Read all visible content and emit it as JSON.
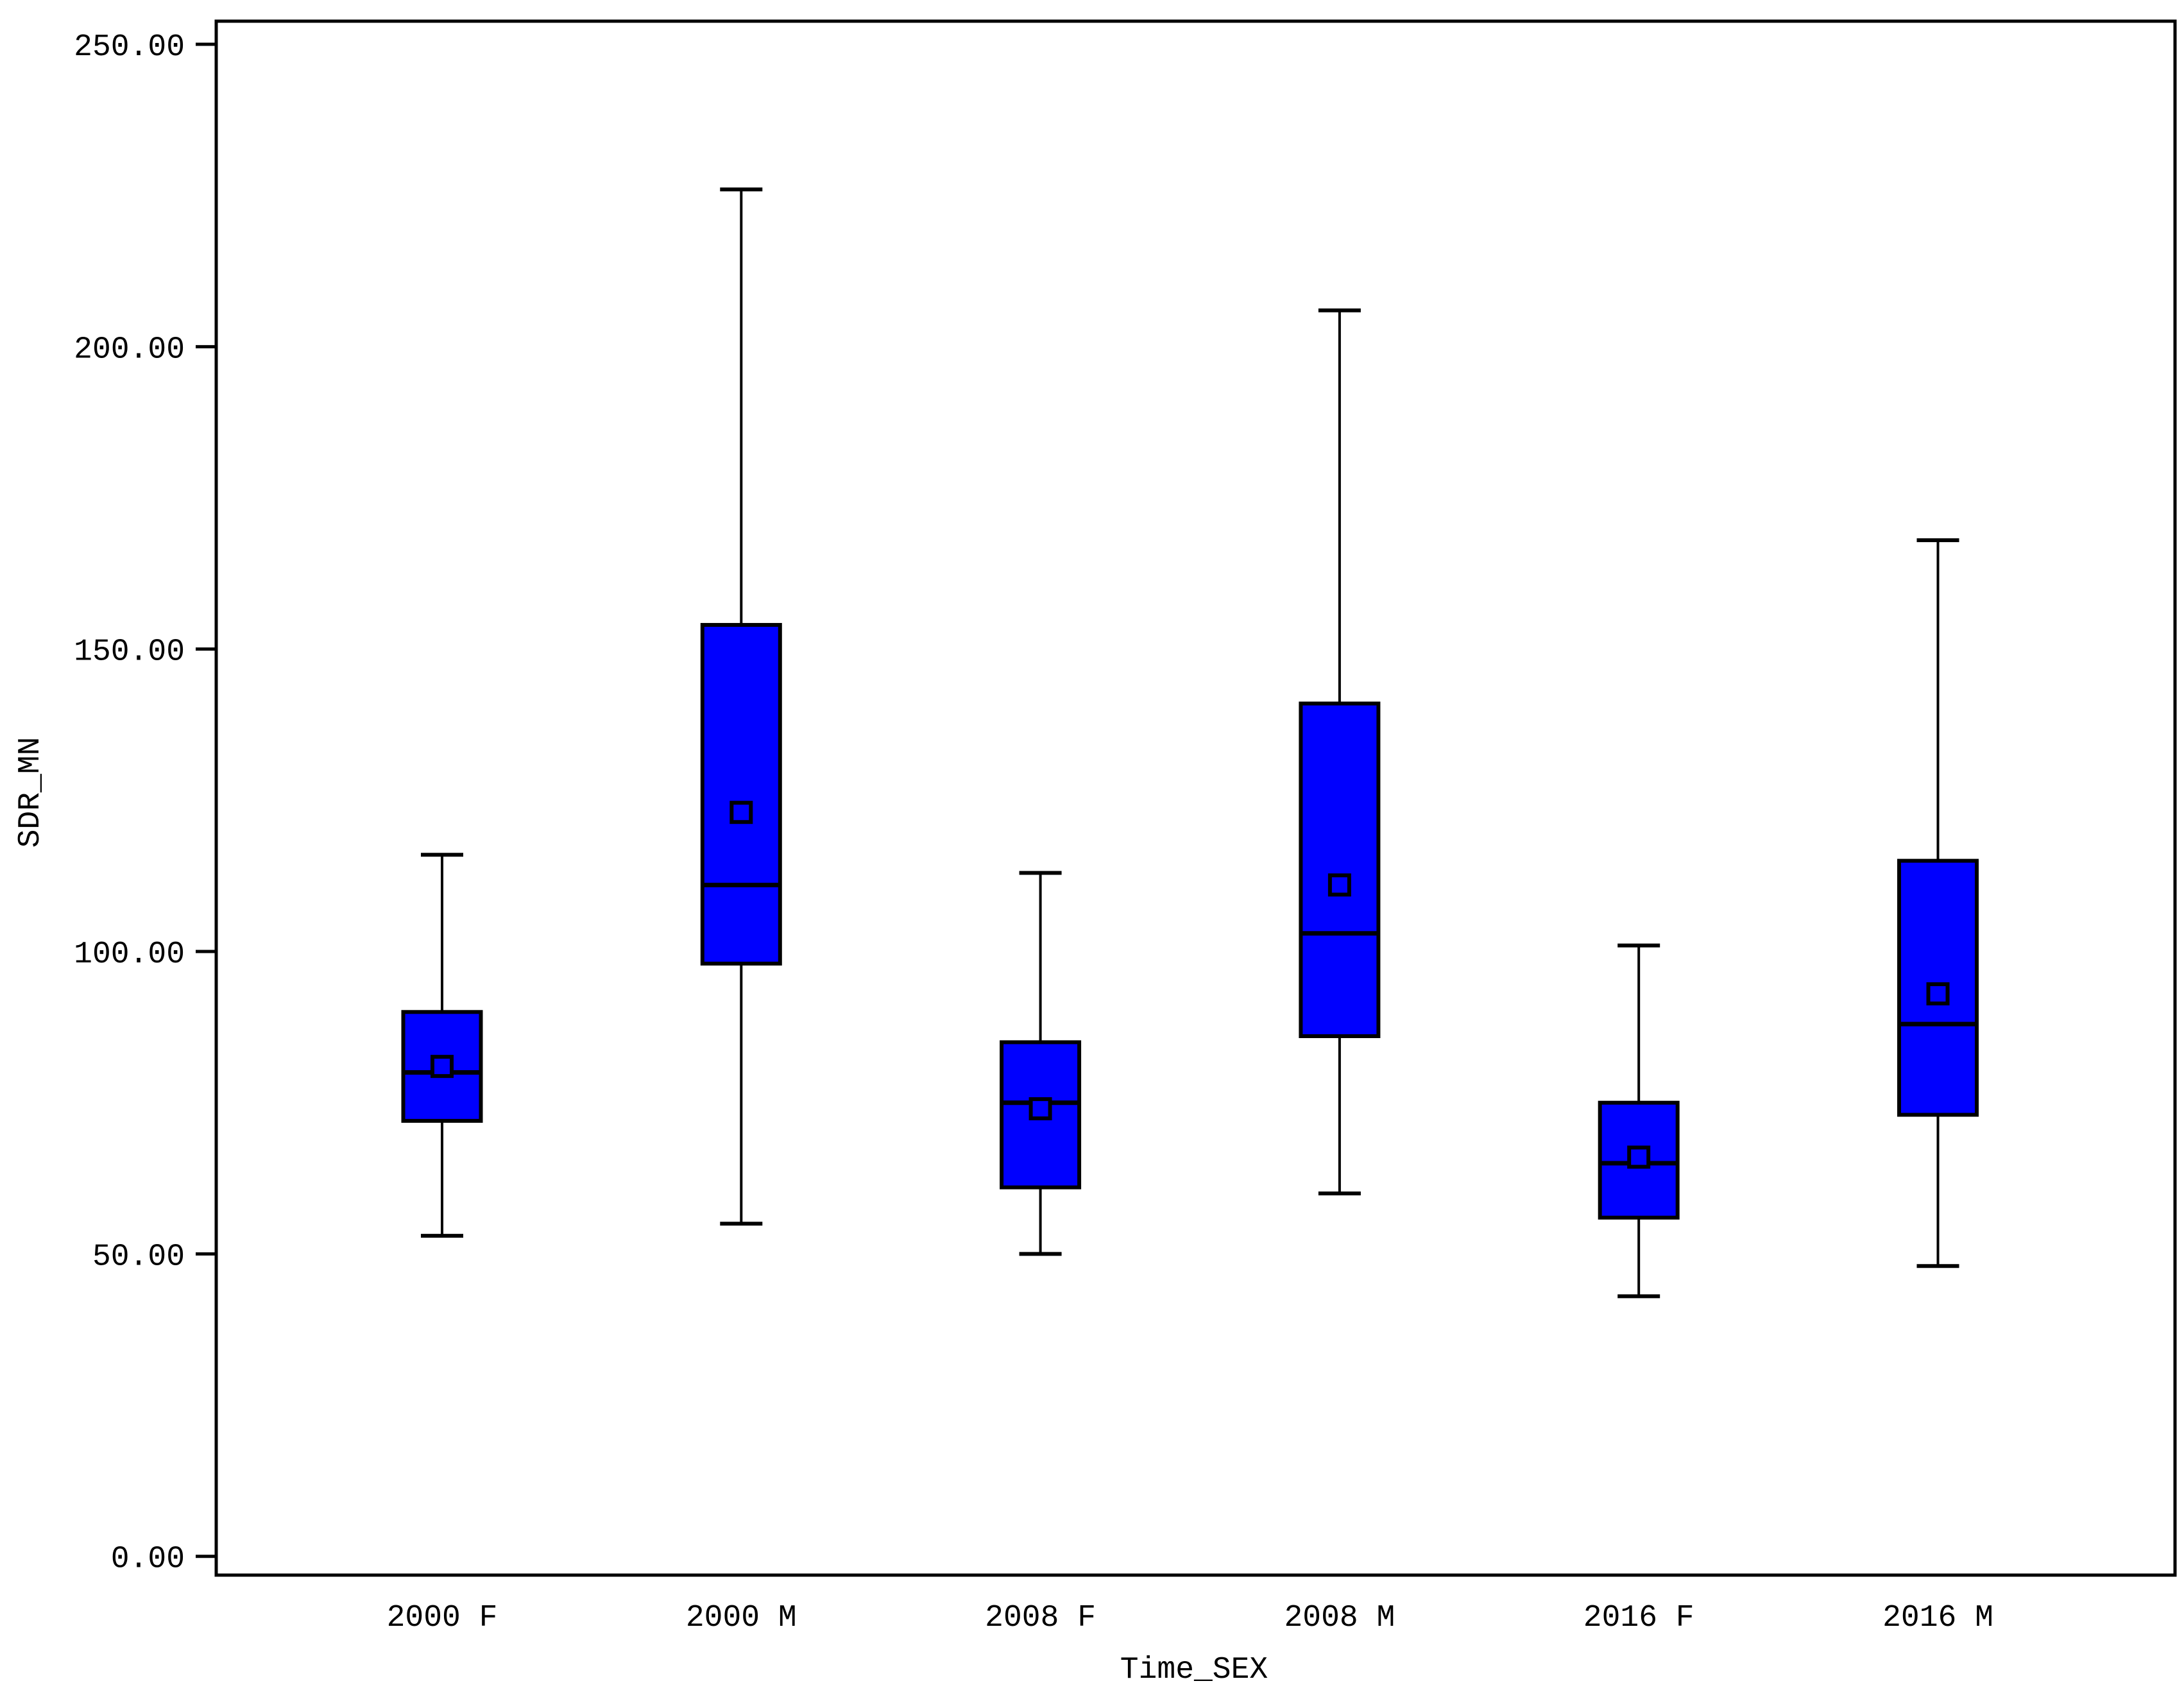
{
  "chart_data": {
    "type": "boxplot",
    "title": "",
    "xlabel": "Time_SEX",
    "ylabel": "SDR_MN",
    "ylim": [
      0,
      250
    ],
    "grid": false,
    "legend": "none",
    "yticks": [
      {
        "value": 0,
        "label": "0.00"
      },
      {
        "value": 50,
        "label": "50.00"
      },
      {
        "value": 100,
        "label": "100.00"
      },
      {
        "value": 150,
        "label": "150.00"
      },
      {
        "value": 200,
        "label": "200.00"
      },
      {
        "value": 250,
        "label": "250.00"
      }
    ],
    "categories": [
      "2000 F",
      "2000 M",
      "2008 F",
      "2008 M",
      "2016 F",
      "2016 M"
    ],
    "series": [
      {
        "category": "2000 F",
        "min": 53,
        "q1": 72,
        "median": 80,
        "mean": 81,
        "q3": 90,
        "max": 116
      },
      {
        "category": "2000 M",
        "min": 55,
        "q1": 98,
        "median": 111,
        "mean": 123,
        "q3": 154,
        "max": 226
      },
      {
        "category": "2008 F",
        "min": 50,
        "q1": 61,
        "median": 75,
        "mean": 74,
        "q3": 85,
        "max": 113
      },
      {
        "category": "2008 M",
        "min": 60,
        "q1": 86,
        "median": 103,
        "mean": 111,
        "q3": 141,
        "max": 206
      },
      {
        "category": "2016 F",
        "min": 43,
        "q1": 56,
        "median": 65,
        "mean": 66,
        "q3": 75,
        "max": 101
      },
      {
        "category": "2016 M",
        "min": 48,
        "q1": 73,
        "median": 88,
        "mean": 93,
        "q3": 115,
        "max": 168
      }
    ],
    "colors": {
      "box_fill": "#0000fe",
      "line": "#000000",
      "background": "#ffffff"
    }
  }
}
